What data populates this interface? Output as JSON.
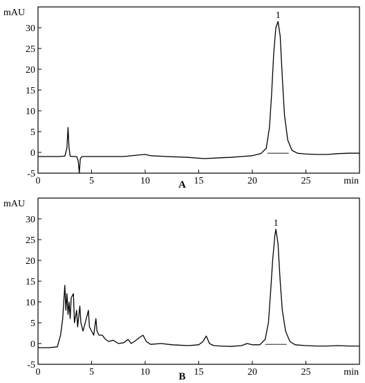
{
  "chart_data": [
    {
      "type": "line",
      "panel_label": "A",
      "ylabel": "mAU",
      "xlabel": "min",
      "xlim": [
        0,
        30
      ],
      "ylim": [
        -5,
        35
      ],
      "xticks": [
        "0",
        "5",
        "10",
        "15",
        "20",
        "25"
      ],
      "yticks": [
        "-5",
        "0",
        "5",
        "10",
        "15",
        "20",
        "25",
        "30"
      ],
      "peak_labels": [
        {
          "text": "1",
          "x": 22.4,
          "y": 31.5
        }
      ],
      "series": [
        {
          "x": [
            0,
            2,
            2.5,
            2.7,
            2.8,
            2.9,
            3.0,
            3.2,
            3.6,
            3.75,
            3.85,
            3.95,
            4.1,
            5,
            8,
            9.5,
            10,
            10.5,
            12,
            14,
            15.5,
            17,
            18,
            19,
            20,
            20.8,
            21.3,
            21.6,
            21.8,
            22.0,
            22.2,
            22.4,
            22.6,
            22.8,
            23.0,
            23.3,
            23.7,
            24.2,
            25,
            26,
            27,
            28,
            29,
            30
          ],
          "y": [
            -1,
            -1,
            -0.9,
            1,
            6,
            1,
            -0.9,
            -1,
            -1,
            -2,
            -5,
            -1.5,
            -1,
            -1,
            -1,
            -0.6,
            -0.5,
            -0.8,
            -1,
            -1.2,
            -1.5,
            -1.3,
            -1.2,
            -1,
            -0.8,
            -0.3,
            1,
            6,
            14,
            24,
            30,
            31.5,
            28,
            18,
            9,
            3,
            0.5,
            -0.2,
            -0.4,
            -0.5,
            -0.5,
            -0.3,
            -0.2,
            -0.2
          ]
        }
      ]
    },
    {
      "type": "line",
      "panel_label": "B",
      "ylabel": "mAU",
      "xlabel": "min",
      "xlim": [
        0,
        30
      ],
      "ylim": [
        -5,
        35
      ],
      "xticks": [
        "0",
        "5",
        "10",
        "15",
        "20",
        "25"
      ],
      "yticks": [
        "-5",
        "0",
        "5",
        "10",
        "15",
        "20",
        "25",
        "30"
      ],
      "peak_labels": [
        {
          "text": "1",
          "x": 22.2,
          "y": 27.5
        }
      ],
      "series": [
        {
          "x": [
            0,
            1,
            1.8,
            2.1,
            2.3,
            2.5,
            2.6,
            2.7,
            2.8,
            2.9,
            3.0,
            3.1,
            3.3,
            3.4,
            3.6,
            3.7,
            3.9,
            4.0,
            4.2,
            4.5,
            4.7,
            4.8,
            5.0,
            5.2,
            5.4,
            5.5,
            5.7,
            6.0,
            6.3,
            6.6,
            7.0,
            7.5,
            8.0,
            8.4,
            8.7,
            9.0,
            9.5,
            9.8,
            10.1,
            10.5,
            11.5,
            12.5,
            14,
            15.0,
            15.4,
            15.7,
            16.0,
            16.4,
            17,
            18,
            19,
            19.5,
            20,
            20.7,
            21.2,
            21.5,
            21.7,
            21.9,
            22.1,
            22.2,
            22.4,
            22.6,
            22.8,
            23.1,
            23.5,
            24,
            25,
            26,
            27,
            28,
            29,
            30
          ],
          "y": [
            -1,
            -1,
            -0.8,
            2,
            6,
            14,
            8,
            12,
            7,
            10,
            6,
            11,
            12,
            5,
            8,
            4,
            9,
            5,
            3,
            6,
            8,
            4,
            3,
            2,
            6,
            3,
            2,
            2,
            1,
            0.5,
            0.8,
            0,
            0.2,
            1,
            0,
            0.5,
            1.5,
            2,
            0.5,
            -0.2,
            0,
            -0.3,
            -0.5,
            -0.3,
            0.5,
            1.8,
            0,
            -0.5,
            -0.6,
            -0.7,
            -0.5,
            0,
            -0.3,
            -0.3,
            1,
            5,
            12,
            20,
            26,
            27.5,
            24,
            15,
            8,
            3,
            0.5,
            -0.3,
            -0.5,
            -0.6,
            -0.6,
            -0.5,
            -0.6,
            -0.6
          ]
        }
      ]
    }
  ]
}
